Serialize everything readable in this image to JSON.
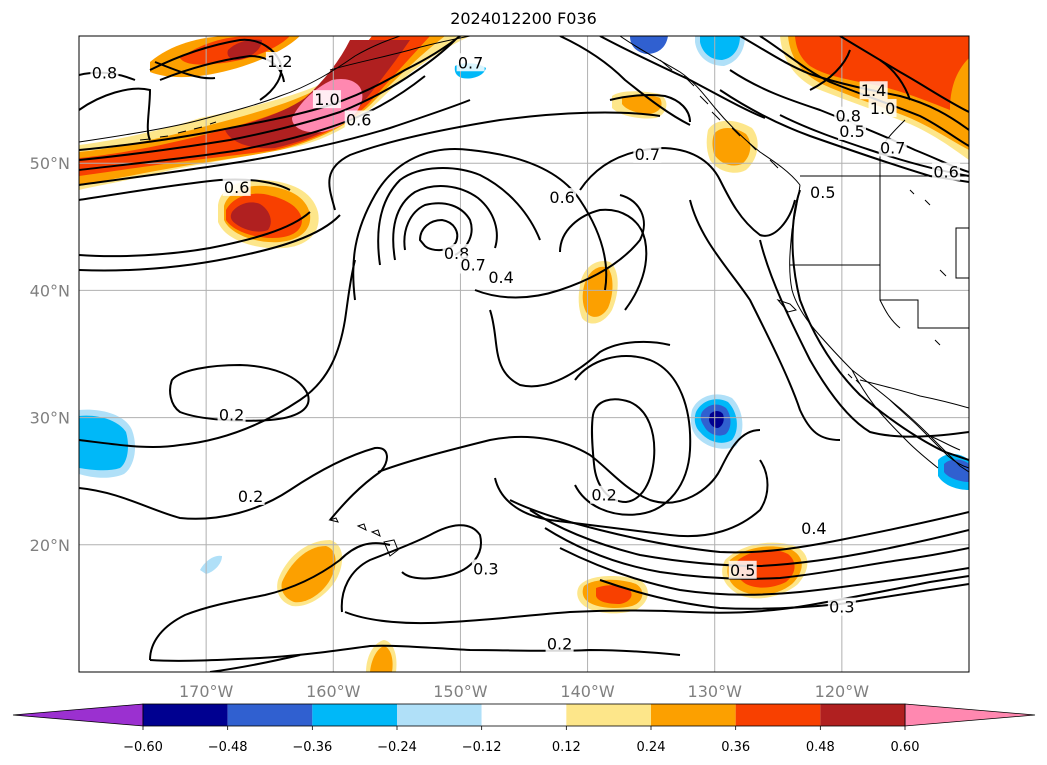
{
  "title": "2024012200 F036",
  "map": {
    "projection": "plate-carree",
    "lon_range": [
      -180,
      -110
    ],
    "lat_range": [
      10,
      60
    ],
    "grid": true,
    "lon_ticks": [
      {
        "value": -170,
        "label": "170°W"
      },
      {
        "value": -160,
        "label": "160°W"
      },
      {
        "value": -150,
        "label": "150°W"
      },
      {
        "value": -140,
        "label": "140°W"
      },
      {
        "value": -130,
        "label": "130°W"
      },
      {
        "value": -120,
        "label": "120°W"
      }
    ],
    "lat_ticks": [
      {
        "value": 50,
        "label": "50°N"
      },
      {
        "value": 40,
        "label": "40°N"
      },
      {
        "value": 30,
        "label": "30°N"
      },
      {
        "value": 20,
        "label": "20°N"
      }
    ],
    "contour_labels": [
      {
        "text": "0.8",
        "lon": -178.0,
        "lat": 56.9
      },
      {
        "text": "1.2",
        "lon": -164.2,
        "lat": 57.8
      },
      {
        "text": "1.0",
        "lon": -160.5,
        "lat": 54.8
      },
      {
        "text": "0.6",
        "lon": -158.0,
        "lat": 53.2
      },
      {
        "text": "0.7",
        "lon": -149.2,
        "lat": 57.7
      },
      {
        "text": "0.6",
        "lon": -167.6,
        "lat": 47.9
      },
      {
        "text": "0.6",
        "lon": -142.0,
        "lat": 47.1
      },
      {
        "text": "0.8",
        "lon": -150.3,
        "lat": 42.7
      },
      {
        "text": "0.7",
        "lon": -149.0,
        "lat": 41.8
      },
      {
        "text": "0.4",
        "lon": -146.8,
        "lat": 40.8
      },
      {
        "text": "0.7",
        "lon": -135.3,
        "lat": 50.5
      },
      {
        "text": "0.5",
        "lon": -121.5,
        "lat": 47.5
      },
      {
        "text": "1.4",
        "lon": -117.5,
        "lat": 55.5
      },
      {
        "text": "1.0",
        "lon": -116.8,
        "lat": 54.1
      },
      {
        "text": "0.8",
        "lon": -119.5,
        "lat": 53.5
      },
      {
        "text": "0.5",
        "lon": -119.2,
        "lat": 52.3
      },
      {
        "text": "0.7",
        "lon": -116.0,
        "lat": 51.0
      },
      {
        "text": "0.6",
        "lon": -111.8,
        "lat": 49.1
      },
      {
        "text": "0.2",
        "lon": -168.0,
        "lat": 30.0
      },
      {
        "text": "0.2",
        "lon": -166.5,
        "lat": 23.6
      },
      {
        "text": "0.2",
        "lon": -138.7,
        "lat": 23.7
      },
      {
        "text": "0.4",
        "lon": -122.2,
        "lat": 21.1
      },
      {
        "text": "0.5",
        "lon": -127.8,
        "lat": 17.8
      },
      {
        "text": "0.3",
        "lon": -148.0,
        "lat": 17.9
      },
      {
        "text": "0.3",
        "lon": -120.0,
        "lat": 14.9
      },
      {
        "text": "0.2",
        "lon": -142.2,
        "lat": 12.0
      }
    ]
  },
  "chart_data": {
    "type": "heatmap",
    "title": "2024012200 F036",
    "x_axis": {
      "label": "",
      "range": [
        -180,
        -110
      ],
      "unit": "degrees longitude"
    },
    "y_axis": {
      "label": "",
      "range": [
        10,
        60
      ],
      "unit": "degrees latitude"
    },
    "colorbar": {
      "orientation": "horizontal",
      "extend": "both",
      "boundaries": [
        -0.6,
        -0.48,
        -0.36,
        -0.24,
        -0.12,
        0.12,
        0.24,
        0.36,
        0.48,
        0.6
      ],
      "tick_labels": [
        "−0.60",
        "−0.48",
        "−0.36",
        "−0.24",
        "−0.12",
        "0.12",
        "0.24",
        "0.36",
        "0.48",
        "0.60"
      ],
      "colors": [
        "#9b30d0",
        "#000090",
        "#3060d0",
        "#00b8f8",
        "#b0e0f8",
        "#ffffff",
        "#fde68a",
        "#fca000",
        "#f84000",
        "#b02020",
        "#ff88b0"
      ]
    },
    "contour_levels": [
      0.2,
      0.3,
      0.4,
      0.5,
      0.6,
      0.7,
      0.8,
      1.0,
      1.2,
      1.4
    ]
  },
  "colors": {
    "positive_light": "#fde68a",
    "positive_mid": "#fca000",
    "positive_strong": "#f84000",
    "positive_dark": "#b02020",
    "positive_max": "#ff88b0",
    "negative_light": "#b0e0f8",
    "negative_mid": "#00b8f8",
    "negative_strong": "#3060d0",
    "negative_dark": "#000090"
  }
}
